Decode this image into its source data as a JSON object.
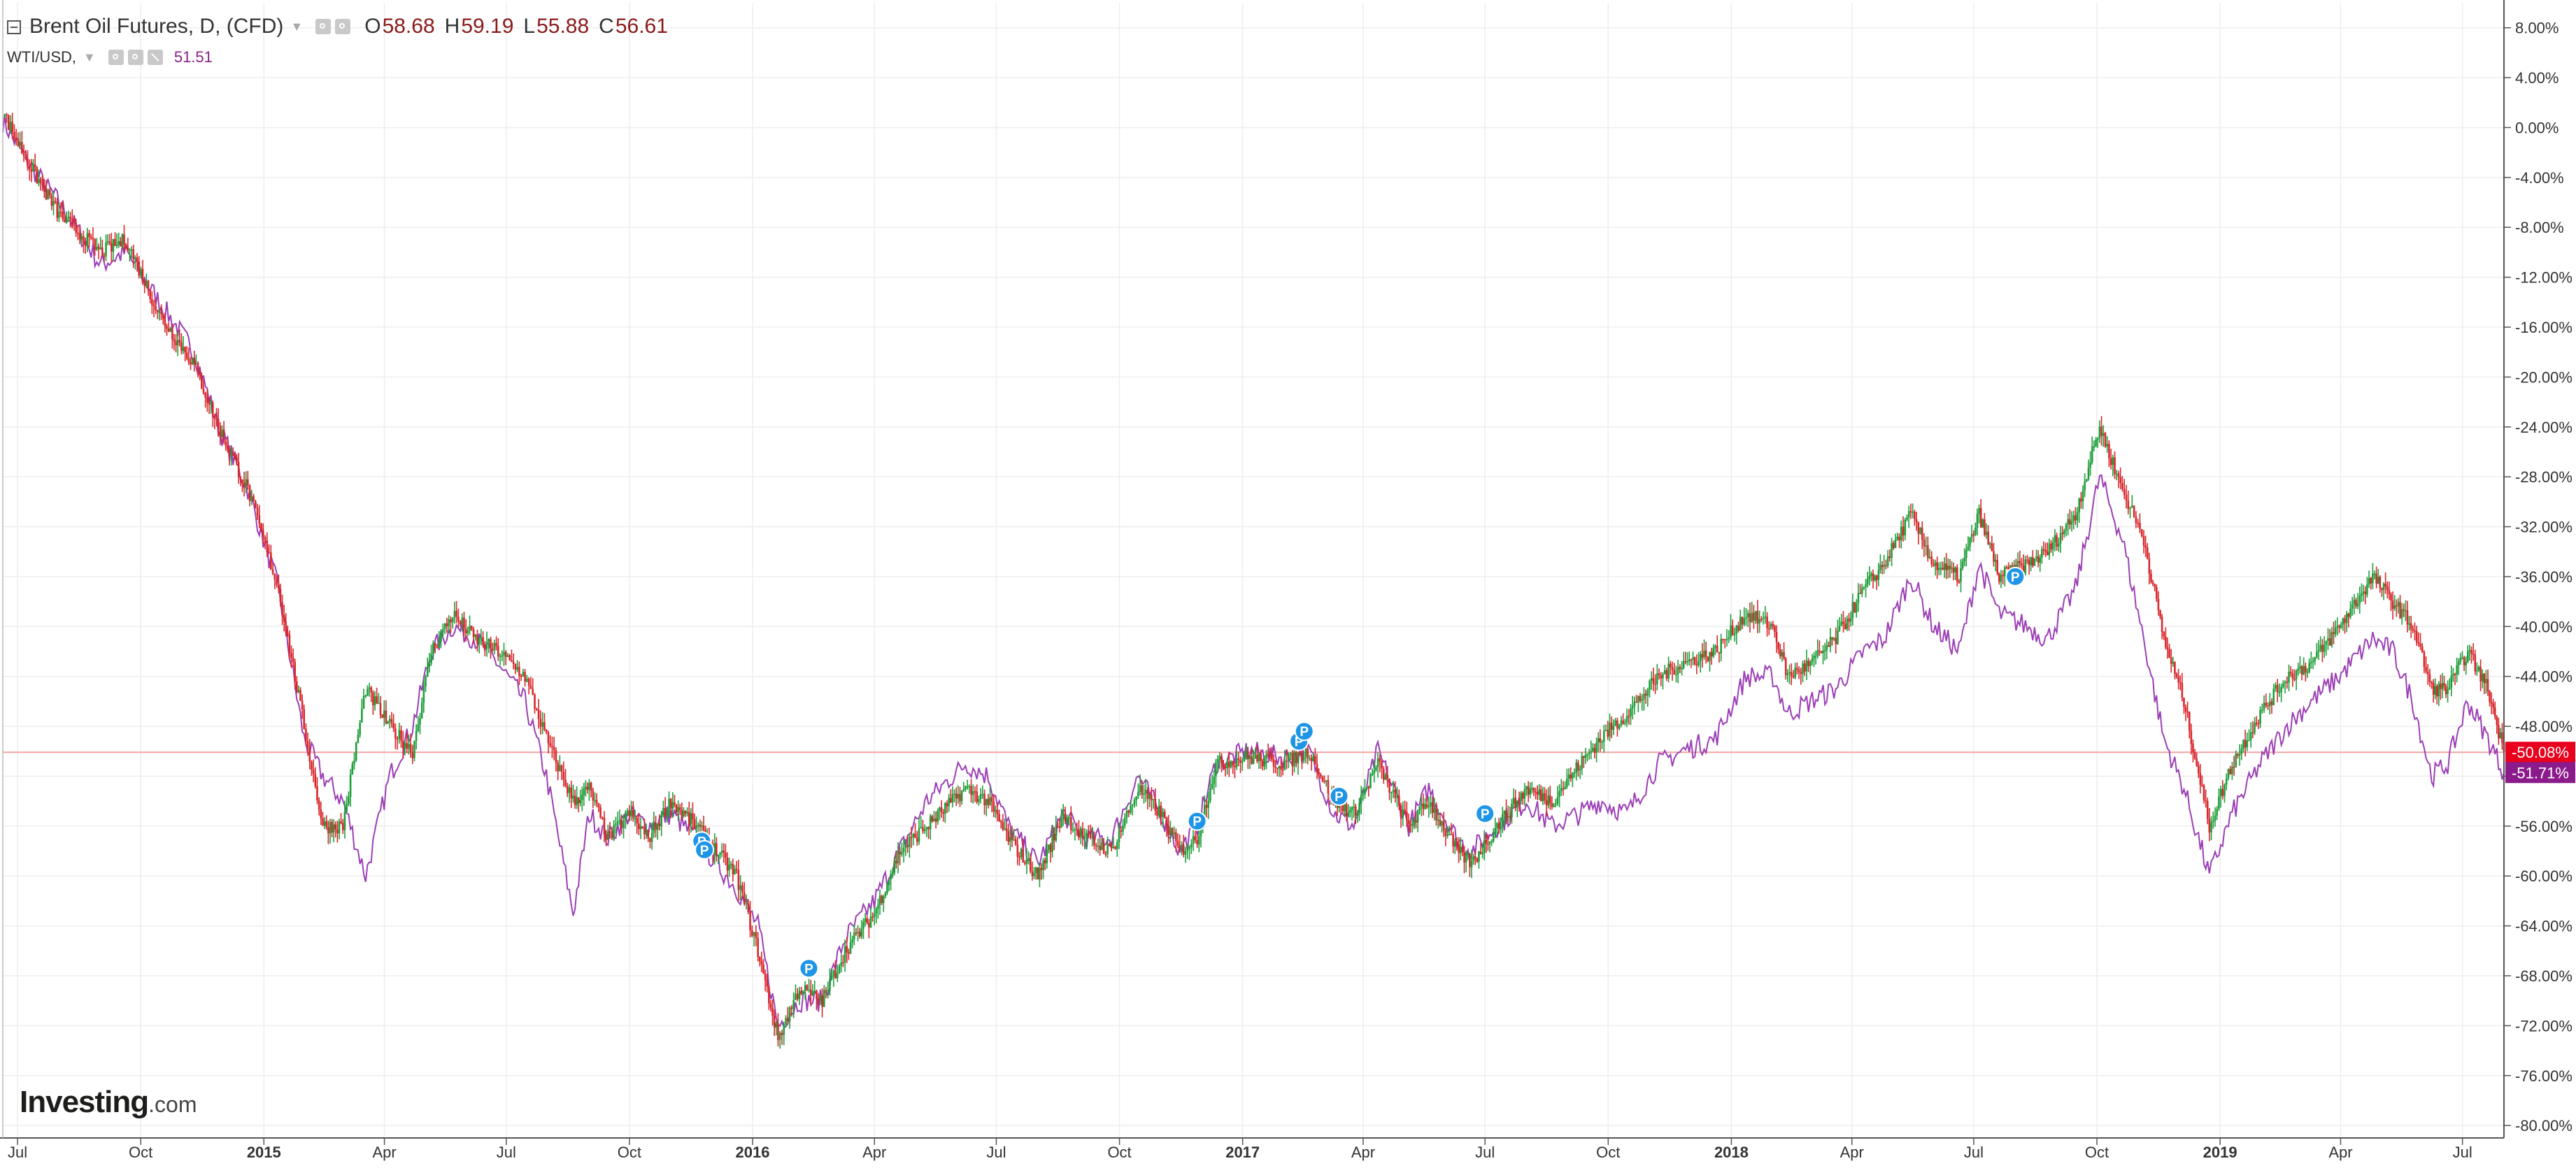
{
  "legend": {
    "title": "Brent Oil Futures, D, (CFD)",
    "ohlc": [
      {
        "label": "O",
        "value": "58.68"
      },
      {
        "label": "H",
        "value": "59.19"
      },
      {
        "label": "L",
        "value": "55.88"
      },
      {
        "label": "C",
        "value": "56.61"
      }
    ],
    "series2_name": "WTI/USD,",
    "series2_value": "51.51"
  },
  "logo": {
    "main": "Investing",
    "suffix": ".com"
  },
  "colors": {
    "up": "#1e9e3a",
    "down": "#d8272b",
    "compare": "#9b3fb5",
    "grid": "#eeeeee",
    "axis": "#555555",
    "price_line": "#f4a3a3",
    "brent_tag": "#e8001c",
    "wti_tag": "#8b1a8b",
    "marker": "#1f95e8"
  },
  "chart_data": {
    "type": "line",
    "x_axis": {
      "type": "date",
      "range": [
        "2014-06-20",
        "2019-08-01"
      ],
      "ticks": [
        {
          "date": "2014-07-01",
          "label": "Jul"
        },
        {
          "date": "2014-10-01",
          "label": "Oct"
        },
        {
          "date": "2015-01-01",
          "label": "2015"
        },
        {
          "date": "2015-04-01",
          "label": "Apr"
        },
        {
          "date": "2015-07-01",
          "label": "Jul"
        },
        {
          "date": "2015-10-01",
          "label": "Oct"
        },
        {
          "date": "2016-01-01",
          "label": "2016"
        },
        {
          "date": "2016-04-01",
          "label": "Apr"
        },
        {
          "date": "2016-07-01",
          "label": "Jul"
        },
        {
          "date": "2016-10-01",
          "label": "Oct"
        },
        {
          "date": "2017-01-01",
          "label": "2017"
        },
        {
          "date": "2017-04-01",
          "label": "Apr"
        },
        {
          "date": "2017-07-01",
          "label": "Jul"
        },
        {
          "date": "2017-10-01",
          "label": "Oct"
        },
        {
          "date": "2018-01-01",
          "label": "2018"
        },
        {
          "date": "2018-04-01",
          "label": "Apr"
        },
        {
          "date": "2018-07-01",
          "label": "Jul"
        },
        {
          "date": "2018-10-01",
          "label": "Oct"
        },
        {
          "date": "2019-01-01",
          "label": "2019"
        },
        {
          "date": "2019-04-01",
          "label": "Apr"
        },
        {
          "date": "2019-07-01",
          "label": "Jul"
        }
      ]
    },
    "y_axis": {
      "unit": "percent",
      "range": [
        -81,
        10
      ],
      "ticks": [
        8,
        4,
        0,
        -4,
        -8,
        -12,
        -16,
        -20,
        -24,
        -28,
        -32,
        -36,
        -40,
        -44,
        -48,
        -52,
        -56,
        -60,
        -64,
        -68,
        -72,
        -76,
        -80
      ],
      "tick_labels": [
        "8.00%",
        "4.00%",
        "0.00%",
        "-4.00%",
        "-8.00%",
        "-12.00%",
        "-16.00%",
        "-20.00%",
        "-24.00%",
        "-28.00%",
        "-32.00%",
        "-36.00%",
        "-40.00%",
        "-44.00%",
        "-48.00%",
        "-52.00%",
        "-56.00%",
        "-60.00%",
        "-64.00%",
        "-68.00%",
        "-72.00%",
        "-76.00%",
        "-80.00%"
      ],
      "side": "right"
    },
    "grid": true,
    "legend_position": "top-left",
    "series": [
      {
        "name": "Brent Oil Futures, D, (CFD)",
        "style": "candlestick",
        "last_label": "-50.08%",
        "last_value": -50.08,
        "points": [
          [
            "2014-06-20",
            1.2
          ],
          [
            "2014-07-10",
            -3
          ],
          [
            "2014-08-01",
            -7
          ],
          [
            "2014-09-01",
            -10
          ],
          [
            "2014-09-20",
            -9
          ],
          [
            "2014-10-15",
            -15
          ],
          [
            "2014-11-10",
            -19
          ],
          [
            "2014-11-28",
            -24
          ],
          [
            "2014-12-20",
            -29
          ],
          [
            "2015-01-12",
            -37
          ],
          [
            "2015-01-31",
            -48
          ],
          [
            "2015-02-14",
            -56
          ],
          [
            "2015-03-01",
            -56
          ],
          [
            "2015-03-18",
            -45
          ],
          [
            "2015-04-05",
            -48
          ],
          [
            "2015-04-22",
            -50
          ],
          [
            "2015-05-06",
            -42
          ],
          [
            "2015-05-22",
            -39
          ],
          [
            "2015-06-08",
            -41
          ],
          [
            "2015-06-25",
            -42
          ],
          [
            "2015-07-15",
            -44
          ],
          [
            "2015-07-31",
            -49
          ],
          [
            "2015-08-20",
            -54
          ],
          [
            "2015-09-01",
            -53
          ],
          [
            "2015-09-15",
            -57
          ],
          [
            "2015-10-01",
            -55
          ],
          [
            "2015-10-15",
            -57
          ],
          [
            "2015-11-01",
            -54
          ],
          [
            "2015-11-20",
            -56
          ],
          [
            "2015-12-05",
            -58
          ],
          [
            "2015-12-20",
            -60
          ],
          [
            "2016-01-05",
            -66
          ],
          [
            "2016-01-20",
            -73
          ],
          [
            "2016-02-05",
            -69
          ],
          [
            "2016-02-22",
            -70
          ],
          [
            "2016-03-10",
            -66
          ],
          [
            "2016-04-01",
            -63
          ],
          [
            "2016-04-20",
            -58
          ],
          [
            "2016-05-10",
            -56
          ],
          [
            "2016-06-08",
            -53
          ],
          [
            "2016-06-25",
            -54
          ],
          [
            "2016-07-10",
            -57
          ],
          [
            "2016-08-01",
            -60
          ],
          [
            "2016-08-20",
            -55
          ],
          [
            "2016-09-05",
            -57
          ],
          [
            "2016-09-25",
            -58
          ],
          [
            "2016-10-15",
            -53
          ],
          [
            "2016-11-01",
            -55
          ],
          [
            "2016-11-15",
            -58
          ],
          [
            "2016-11-28",
            -57
          ],
          [
            "2016-12-12",
            -51
          ],
          [
            "2017-01-05",
            -50.5
          ],
          [
            "2017-01-31",
            -51
          ],
          [
            "2017-02-20",
            -50
          ],
          [
            "2017-03-10",
            -54
          ],
          [
            "2017-03-25",
            -55
          ],
          [
            "2017-04-12",
            -51
          ],
          [
            "2017-05-05",
            -56
          ],
          [
            "2017-05-20",
            -54
          ],
          [
            "2017-06-10",
            -58
          ],
          [
            "2017-06-21",
            -59
          ],
          [
            "2017-07-10",
            -56
          ],
          [
            "2017-08-01",
            -53
          ],
          [
            "2017-08-20",
            -54
          ],
          [
            "2017-09-10",
            -51
          ],
          [
            "2017-09-25",
            -49
          ],
          [
            "2017-10-15",
            -47
          ],
          [
            "2017-11-08",
            -44
          ],
          [
            "2017-11-25",
            -43
          ],
          [
            "2017-12-20",
            -42
          ],
          [
            "2018-01-12",
            -39
          ],
          [
            "2018-02-01",
            -40
          ],
          [
            "2018-02-12",
            -44
          ],
          [
            "2018-03-01",
            -43
          ],
          [
            "2018-03-20",
            -41
          ],
          [
            "2018-04-10",
            -37
          ],
          [
            "2018-04-25",
            -35
          ],
          [
            "2018-05-15",
            -31
          ],
          [
            "2018-06-01",
            -35
          ],
          [
            "2018-06-20",
            -36
          ],
          [
            "2018-07-05",
            -31
          ],
          [
            "2018-07-20",
            -36
          ],
          [
            "2018-08-10",
            -35
          ],
          [
            "2018-08-25",
            -34
          ],
          [
            "2018-09-15",
            -31
          ],
          [
            "2018-10-03",
            -24
          ],
          [
            "2018-10-20",
            -29
          ],
          [
            "2018-11-05",
            -33
          ],
          [
            "2018-11-20",
            -41
          ],
          [
            "2018-12-05",
            -46
          ],
          [
            "2018-12-24",
            -56
          ],
          [
            "2019-01-10",
            -51
          ],
          [
            "2019-01-31",
            -47
          ],
          [
            "2019-02-20",
            -44
          ],
          [
            "2019-03-10",
            -43
          ],
          [
            "2019-03-31",
            -40
          ],
          [
            "2019-04-25",
            -36
          ],
          [
            "2019-05-10",
            -38
          ],
          [
            "2019-05-25",
            -40
          ],
          [
            "2019-06-08",
            -45
          ],
          [
            "2019-06-20",
            -45
          ],
          [
            "2019-07-05",
            -42
          ],
          [
            "2019-07-20",
            -45
          ],
          [
            "2019-08-01",
            -50.08
          ]
        ]
      },
      {
        "name": "WTI/USD,",
        "style": "line",
        "last_label": "-51.71%",
        "last_value": -51.71,
        "points": [
          [
            "2014-06-20",
            0.5
          ],
          [
            "2014-07-10",
            -3
          ],
          [
            "2014-08-01",
            -6
          ],
          [
            "2014-09-01",
            -11
          ],
          [
            "2014-09-20",
            -10
          ],
          [
            "2014-10-15",
            -14
          ],
          [
            "2014-11-10",
            -18
          ],
          [
            "2014-11-28",
            -24
          ],
          [
            "2014-12-20",
            -29
          ],
          [
            "2015-01-12",
            -37
          ],
          [
            "2015-01-31",
            -49
          ],
          [
            "2015-02-14",
            -52
          ],
          [
            "2015-03-01",
            -54
          ],
          [
            "2015-03-18",
            -60
          ],
          [
            "2015-04-05",
            -52
          ],
          [
            "2015-04-22",
            -48
          ],
          [
            "2015-05-06",
            -42
          ],
          [
            "2015-05-22",
            -40
          ],
          [
            "2015-06-08",
            -41
          ],
          [
            "2015-06-25",
            -43
          ],
          [
            "2015-07-15",
            -46
          ],
          [
            "2015-07-31",
            -52
          ],
          [
            "2015-08-20",
            -63
          ],
          [
            "2015-09-01",
            -55
          ],
          [
            "2015-09-15",
            -57
          ],
          [
            "2015-10-01",
            -55
          ],
          [
            "2015-10-15",
            -56
          ],
          [
            "2015-11-01",
            -55
          ],
          [
            "2015-11-20",
            -57
          ],
          [
            "2015-12-05",
            -59
          ],
          [
            "2015-12-20",
            -61
          ],
          [
            "2016-01-05",
            -64
          ],
          [
            "2016-01-20",
            -72
          ],
          [
            "2016-02-05",
            -70
          ],
          [
            "2016-02-22",
            -70
          ],
          [
            "2016-03-10",
            -65
          ],
          [
            "2016-04-01",
            -62
          ],
          [
            "2016-04-20",
            -58
          ],
          [
            "2016-05-10",
            -54
          ],
          [
            "2016-06-08",
            -51
          ],
          [
            "2016-06-25",
            -52
          ],
          [
            "2016-07-10",
            -56
          ],
          [
            "2016-08-01",
            -59
          ],
          [
            "2016-08-20",
            -55
          ],
          [
            "2016-09-05",
            -57
          ],
          [
            "2016-09-25",
            -57
          ],
          [
            "2016-10-15",
            -52
          ],
          [
            "2016-11-01",
            -55
          ],
          [
            "2016-11-15",
            -58
          ],
          [
            "2016-11-28",
            -56
          ],
          [
            "2016-12-12",
            -51
          ],
          [
            "2017-01-05",
            -50
          ],
          [
            "2017-01-31",
            -50.5
          ],
          [
            "2017-02-20",
            -50
          ],
          [
            "2017-03-10",
            -55
          ],
          [
            "2017-03-25",
            -56
          ],
          [
            "2017-04-12",
            -50
          ],
          [
            "2017-05-05",
            -56
          ],
          [
            "2017-05-20",
            -53
          ],
          [
            "2017-06-10",
            -57
          ],
          [
            "2017-06-21",
            -58
          ],
          [
            "2017-07-10",
            -56
          ],
          [
            "2017-08-01",
            -54
          ],
          [
            "2017-08-20",
            -56
          ],
          [
            "2017-09-10",
            -55
          ],
          [
            "2017-09-25",
            -54
          ],
          [
            "2017-10-15",
            -55
          ],
          [
            "2017-11-08",
            -51
          ],
          [
            "2017-11-25",
            -50
          ],
          [
            "2017-12-20",
            -49
          ],
          [
            "2018-01-12",
            -44
          ],
          [
            "2018-02-01",
            -44
          ],
          [
            "2018-02-12",
            -47
          ],
          [
            "2018-03-01",
            -46
          ],
          [
            "2018-03-20",
            -45
          ],
          [
            "2018-04-10",
            -42
          ],
          [
            "2018-04-25",
            -41
          ],
          [
            "2018-05-15",
            -36
          ],
          [
            "2018-06-01",
            -40
          ],
          [
            "2018-06-20",
            -42
          ],
          [
            "2018-07-05",
            -35
          ],
          [
            "2018-07-20",
            -39
          ],
          [
            "2018-08-10",
            -40
          ],
          [
            "2018-08-25",
            -41
          ],
          [
            "2018-09-15",
            -37
          ],
          [
            "2018-10-03",
            -28
          ],
          [
            "2018-10-20",
            -33
          ],
          [
            "2018-11-05",
            -41
          ],
          [
            "2018-11-20",
            -49
          ],
          [
            "2018-12-05",
            -53
          ],
          [
            "2018-12-24",
            -60
          ],
          [
            "2019-01-10",
            -55
          ],
          [
            "2019-01-31",
            -51
          ],
          [
            "2019-02-20",
            -48
          ],
          [
            "2019-03-10",
            -46
          ],
          [
            "2019-03-31",
            -44
          ],
          [
            "2019-04-25",
            -41
          ],
          [
            "2019-05-10",
            -42
          ],
          [
            "2019-05-25",
            -46
          ],
          [
            "2019-06-08",
            -52
          ],
          [
            "2019-06-20",
            -51
          ],
          [
            "2019-07-05",
            -46
          ],
          [
            "2019-07-20",
            -49
          ],
          [
            "2019-08-01",
            -51.71
          ]
        ]
      }
    ],
    "horizontal_line": -50.08,
    "markers": [
      {
        "date": "2015-11-24",
        "value": -57.2,
        "label": "P"
      },
      {
        "date": "2015-11-26",
        "value": -57.9,
        "label": "P"
      },
      {
        "date": "2016-02-12",
        "value": -67.4,
        "label": "P"
      },
      {
        "date": "2016-11-28",
        "value": -55.6,
        "label": "P"
      },
      {
        "date": "2017-02-12",
        "value": -49.2,
        "label": "P"
      },
      {
        "date": "2017-02-16",
        "value": -48.4,
        "label": "P"
      },
      {
        "date": "2017-03-14",
        "value": -53.6,
        "label": "P"
      },
      {
        "date": "2017-07-01",
        "value": -55.0,
        "label": "P"
      },
      {
        "date": "2018-08-01",
        "value": -36.0,
        "label": "P"
      }
    ]
  }
}
